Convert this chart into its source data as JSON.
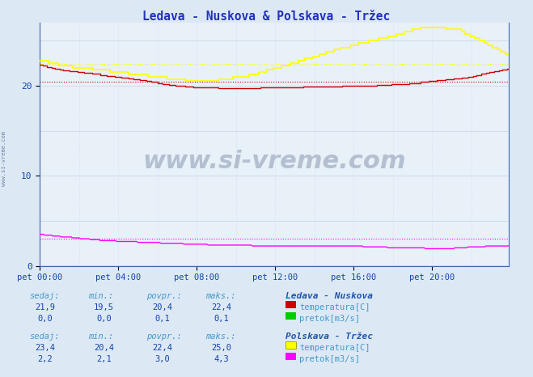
{
  "title": "Ledava - Nuskova & Polskava - Tržec",
  "title_color": "#2233bb",
  "bg_color": "#dce8f4",
  "plot_bg_color": "#e8f0f8",
  "grid_color_h": "#c8d4e0",
  "grid_color_v": "#d0dce8",
  "xlim": [
    0,
    287
  ],
  "ylim": [
    0,
    27
  ],
  "yticks": [
    0,
    10,
    20
  ],
  "xtick_labels": [
    "pet 00:00",
    "pet 04:00",
    "pet 08:00",
    "pet 12:00",
    "pet 16:00",
    "pet 20:00"
  ],
  "xtick_positions": [
    0,
    48,
    96,
    144,
    192,
    240
  ],
  "watermark_text": "www.si-vreme.com",
  "watermark_color": "#1a3060",
  "sidebar_text": "www.si-vreme.com",
  "ledava_temp_color": "#cc0000",
  "ledava_temp_avg": 20.4,
  "ledava_pretok_color": "#00cc00",
  "ledava_pretok_avg": 0.1,
  "polskava_temp_color": "#ffff00",
  "polskava_temp_avg": 22.4,
  "polskava_pretok_color": "#ff00ff",
  "polskava_pretok_avg": 3.0,
  "table_header_color": "#4499cc",
  "table_value_color": "#1144aa",
  "table_bold_color": "#2255aa",
  "ledava_sedaj": "21,9",
  "ledava_min": "19,5",
  "ledava_povpr": "20,4",
  "ledava_maks": "22,4",
  "ledava_pretok_sedaj": "0,0",
  "ledava_pretok_min": "0,0",
  "ledava_pretok_povpr": "0,1",
  "ledava_pretok_maks": "0,1",
  "polskava_sedaj": "23,4",
  "polskava_min": "20,4",
  "polskava_povpr": "22,4",
  "polskava_maks": "25,0",
  "polskava_pretok_sedaj": "2,2",
  "polskava_pretok_min": "2,1",
  "polskava_pretok_povpr": "3,0",
  "polskava_pretok_maks": "4,3"
}
